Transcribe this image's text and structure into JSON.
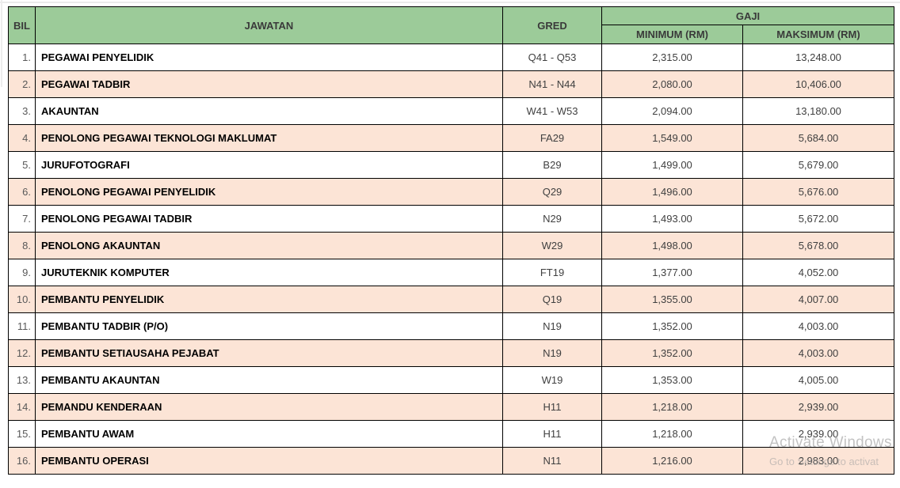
{
  "table": {
    "headers": {
      "bil": "BIL",
      "jawatan": "JAWATAN",
      "gred": "GRED",
      "gaji": "GAJI",
      "minimum": "MINIMUM (RM)",
      "maksimum": "MAKSIMUM (RM)"
    },
    "rows": [
      {
        "bil": "1.",
        "jawatan": "PEGAWAI PENYELIDIK",
        "gred": "Q41 - Q53",
        "min": "2,315.00",
        "max": "13,248.00"
      },
      {
        "bil": "2.",
        "jawatan": "PEGAWAI TADBIR",
        "gred": "N41 - N44",
        "min": "2,080.00",
        "max": "10,406.00"
      },
      {
        "bil": "3.",
        "jawatan": "AKAUNTAN",
        "gred": "W41 - W53",
        "min": "2,094.00",
        "max": "13,180.00"
      },
      {
        "bil": "4.",
        "jawatan": "PENOLONG PEGAWAI TEKNOLOGI MAKLUMAT",
        "gred": "FA29",
        "min": "1,549.00",
        "max": "5,684.00"
      },
      {
        "bil": "5.",
        "jawatan": "JURUFOTOGRAFI",
        "gred": "B29",
        "min": "1,499.00",
        "max": "5,679.00"
      },
      {
        "bil": "6.",
        "jawatan": "PENOLONG PEGAWAI PENYELIDIK",
        "gred": "Q29",
        "min": "1,496.00",
        "max": "5,676.00"
      },
      {
        "bil": "7.",
        "jawatan": "PENOLONG PEGAWAI TADBIR",
        "gred": "N29",
        "min": "1,493.00",
        "max": "5,672.00"
      },
      {
        "bil": "8.",
        "jawatan": "PENOLONG AKAUNTAN",
        "gred": "W29",
        "min": "1,498.00",
        "max": "5,678.00"
      },
      {
        "bil": "9.",
        "jawatan": "JURUTEKNIK KOMPUTER",
        "gred": "FT19",
        "min": "1,377.00",
        "max": "4,052.00"
      },
      {
        "bil": "10.",
        "jawatan": "PEMBANTU PENYELIDIK",
        "gred": "Q19",
        "min": "1,355.00",
        "max": "4,007.00"
      },
      {
        "bil": "11.",
        "jawatan": "PEMBANTU TADBIR (P/O)",
        "gred": "N19",
        "min": "1,352.00",
        "max": "4,003.00"
      },
      {
        "bil": "12.",
        "jawatan": "PEMBANTU SETIAUSAHA PEJABAT",
        "gred": "N19",
        "min": "1,352.00",
        "max": "4,003.00"
      },
      {
        "bil": "13.",
        "jawatan": "PEMBANTU AKAUNTAN",
        "gred": "W19",
        "min": "1,353.00",
        "max": "4,005.00"
      },
      {
        "bil": "14.",
        "jawatan": "PEMANDU KENDERAAN",
        "gred": "H11",
        "min": "1,218.00",
        "max": "2,939.00"
      },
      {
        "bil": "15.",
        "jawatan": "PEMBANTU AWAM",
        "gred": "H11",
        "min": "1,218.00",
        "max": "2,939.00"
      },
      {
        "bil": "16.",
        "jawatan": "PEMBANTU OPERASI",
        "gred": "N11",
        "min": "1,216.00",
        "max": "2,983.00"
      }
    ]
  },
  "watermark": {
    "line1": "Activate Windows",
    "line2": "Go to Settings to activat"
  },
  "colors": {
    "header_green": "#9CCB99",
    "row_pink": "#FCE4D6",
    "row_white": "#FFFFFF",
    "border": "#000000",
    "header_text": "#3a3a3a",
    "value_text": "#404040",
    "watermark_text": "#9e9e9e"
  }
}
